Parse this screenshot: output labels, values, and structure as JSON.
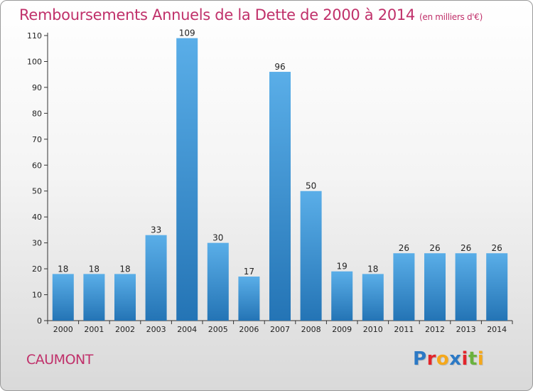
{
  "title": "Remboursements Annuels de la Dette de 2000 à 2014",
  "unit": "(en milliers d'€)",
  "commune": "CAUMONT",
  "logo": {
    "text": "Proxiti",
    "letters": [
      {
        "char": "P",
        "color": "#2c79c5"
      },
      {
        "char": "r",
        "color": "#e2252b"
      },
      {
        "char": "o",
        "color": "#f5a81b"
      },
      {
        "char": "x",
        "color": "#2c79c5"
      },
      {
        "char": "i",
        "color": "#e2252b"
      },
      {
        "char": "t",
        "color": "#6ab23e"
      },
      {
        "char": "i",
        "color": "#f5a81b"
      }
    ]
  },
  "colors": {
    "title": "#c0306a",
    "bar_light": "#5aaee8",
    "bar_dark": "#2474b5"
  },
  "chart_data": {
    "type": "bar",
    "title": "Remboursements Annuels de la Dette de 2000 à 2014",
    "xlabel": "",
    "ylabel": "",
    "categories": [
      "2000",
      "2001",
      "2002",
      "2003",
      "2004",
      "2005",
      "2006",
      "2007",
      "2008",
      "2009",
      "2010",
      "2011",
      "2012",
      "2013",
      "2014"
    ],
    "values": [
      18,
      18,
      18,
      33,
      109,
      30,
      17,
      96,
      50,
      19,
      18,
      26,
      26,
      26,
      26
    ],
    "ylim": [
      0,
      110
    ],
    "yticks": [
      0,
      10,
      20,
      30,
      40,
      50,
      60,
      70,
      80,
      90,
      100,
      110
    ],
    "grid": false,
    "data_labels": true
  }
}
